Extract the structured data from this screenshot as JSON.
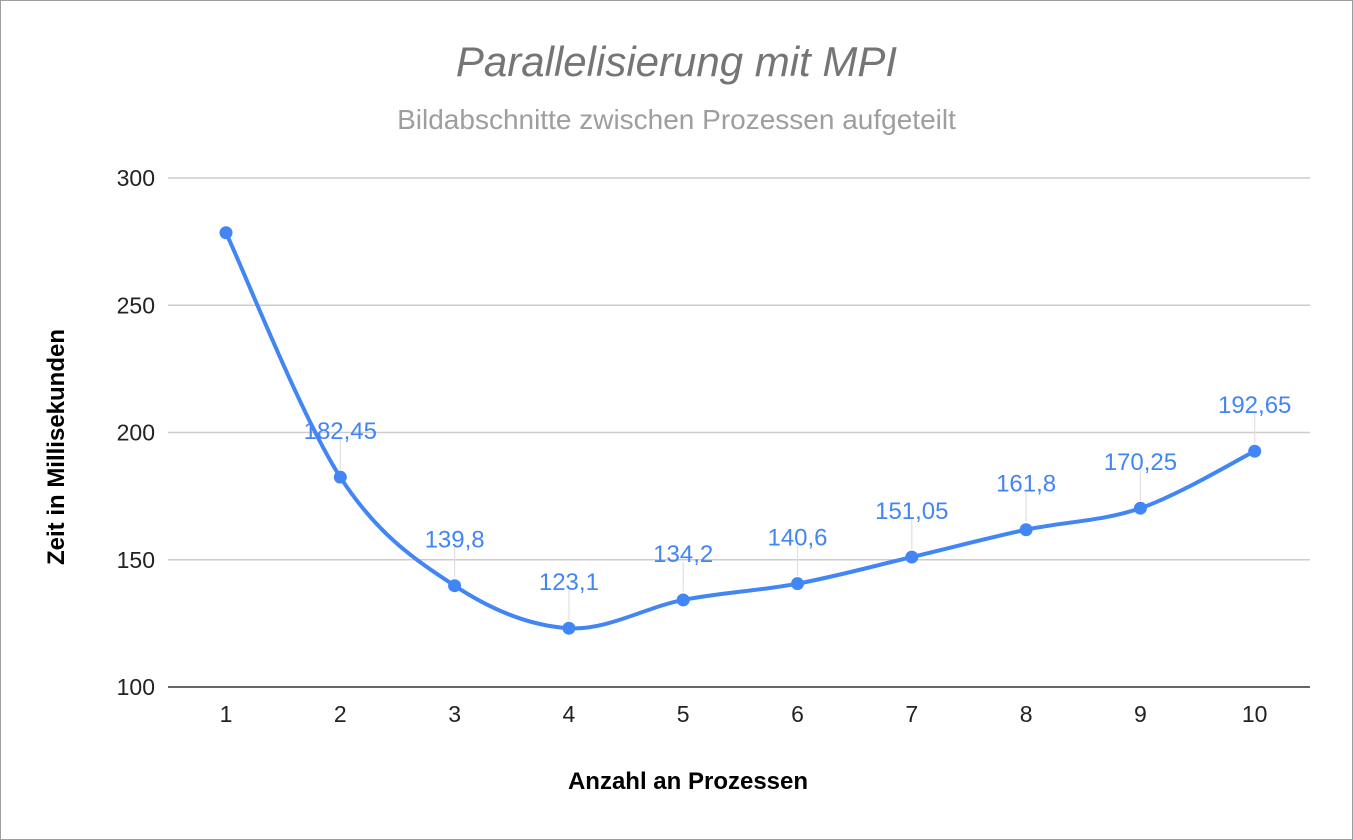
{
  "chart_data": {
    "type": "line",
    "title": "Parallelisierung mit MPI",
    "subtitle": "Bildabschnitte zwischen Prozessen aufgeteilt",
    "xlabel": "Anzahl an Prozessen",
    "ylabel": "Zeit in Millisekunden",
    "categories": [
      "1",
      "2",
      "3",
      "4",
      "5",
      "6",
      "7",
      "8",
      "9",
      "10"
    ],
    "series": [
      {
        "values": [
          278.5,
          182.45,
          139.8,
          123.1,
          134.2,
          140.6,
          151.05,
          161.8,
          170.25,
          192.65
        ],
        "data_labels": [
          "",
          "182,45",
          "139,8",
          "123,1",
          "134,2",
          "140,6",
          "151,05",
          "161,8",
          "170,25",
          "192,65"
        ],
        "color": "#4285f4"
      }
    ],
    "ylim": [
      100,
      300
    ],
    "yticks": [
      "100",
      "150",
      "200",
      "250",
      "300"
    ],
    "grid": true,
    "legend": "none",
    "smooth": true
  }
}
